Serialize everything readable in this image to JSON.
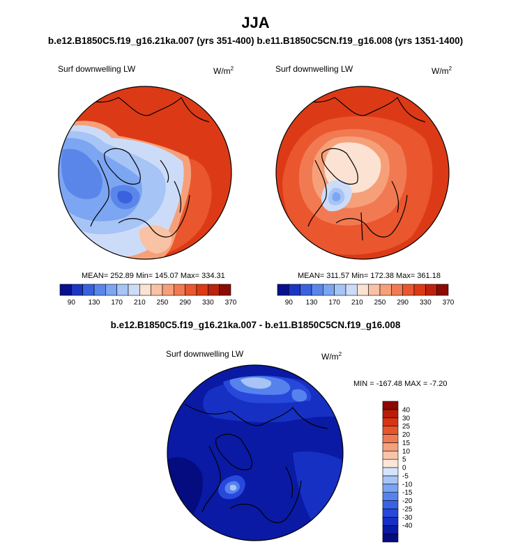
{
  "title": "JJA",
  "subtitle": "b.e12.B1850C5.f19_g16.21ka.007 (yrs 351-400) b.e11.B1850C5CN.f19_g16.008 (yrs 1351-1400)",
  "diff_title": "b.e12.B1850C5.f19_g16.21ka.007 - b.e11.B1850C5CN.f19_g16.008",
  "colors": {
    "full_field": [
      "#08108c",
      "#1c36c4",
      "#3a62de",
      "#5a86ea",
      "#7ca6f2",
      "#a6c4f6",
      "#ccdcf8",
      "#fbe2d2",
      "#f9c2a4",
      "#f6a07a",
      "#f17a52",
      "#ea562e",
      "#dc3a16",
      "#bc220c",
      "#8a0a04"
    ],
    "difference": [
      "#050c80",
      "#0a1aa4",
      "#1630c4",
      "#2848dc",
      "#3a62e8",
      "#5682ee",
      "#7aa4f2",
      "#a8c4f6",
      "#d4e4fa",
      "#fbe6d8",
      "#f8c4a8",
      "#f4a07c",
      "#ee7a54",
      "#e6542e",
      "#d63414",
      "#b81e08",
      "#8c0800"
    ]
  },
  "chart_data": [
    {
      "type": "heatmap",
      "panel": "top-left",
      "label": "Surf downwelling LW",
      "units": "W/m",
      "units_sup": "2",
      "stats": {
        "mean": "252.89",
        "min": "145.07",
        "max": "334.31"
      },
      "stats_text": "MEAN= 252.89  Min= 145.07  Max= 334.31",
      "colorbar_levels": [
        90,
        110,
        130,
        150,
        170,
        190,
        210,
        230,
        250,
        270,
        290,
        310,
        330,
        350,
        370
      ],
      "colorbar_labels": [
        "90",
        "130",
        "170",
        "210",
        "250",
        "290",
        "330",
        "370"
      ]
    },
    {
      "type": "heatmap",
      "panel": "top-right",
      "label": "Surf downwelling LW",
      "units": "W/m",
      "units_sup": "2",
      "stats": {
        "mean": "311.57",
        "min": "172.38",
        "max": "361.18"
      },
      "stats_text": "MEAN= 311.57  Min= 172.38  Max= 361.18",
      "colorbar_levels": [
        90,
        110,
        130,
        150,
        170,
        190,
        210,
        230,
        250,
        270,
        290,
        310,
        330,
        350,
        370
      ],
      "colorbar_labels": [
        "90",
        "130",
        "170",
        "210",
        "250",
        "290",
        "330",
        "370"
      ]
    },
    {
      "type": "heatmap",
      "panel": "bottom",
      "label": "Surf downwelling LW",
      "units": "W/m",
      "units_sup": "2",
      "stats": {
        "min": "-167.48",
        "max": "-7.20"
      },
      "stats_text": "MIN = -167.48 MAX =  -7.20",
      "colorbar_levels": [
        -40,
        -30,
        -25,
        -20,
        -15,
        -10,
        -5,
        0,
        5,
        10,
        15,
        20,
        25,
        30,
        40
      ],
      "colorbar_labels": [
        "40",
        "30",
        "25",
        "20",
        "15",
        "10",
        "5",
        "0",
        "-5",
        "-10",
        "-15",
        "-20",
        "-25",
        "-30",
        "-40"
      ]
    }
  ]
}
